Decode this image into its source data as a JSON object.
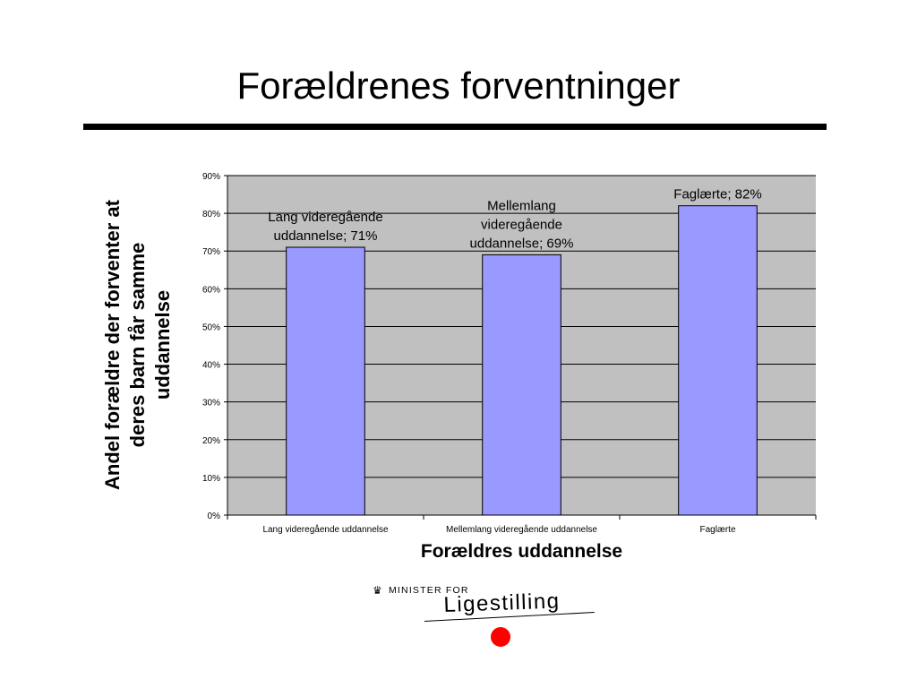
{
  "slide": {
    "title": "Forældrenes forventninger"
  },
  "chart_data": {
    "type": "bar",
    "categories": [
      "Lang videregående uddannelse",
      "Mellemlang videregående uddannelse",
      "Faglærte"
    ],
    "values": [
      71,
      69,
      82
    ],
    "data_labels": [
      [
        "Lang videregående",
        "uddannelse; 71%"
      ],
      [
        "Mellemlang",
        "videregående",
        "uddannelse; 69%"
      ],
      [
        "Faglærte; 82%"
      ]
    ],
    "ylabel_lines": [
      "Andel forældre der forventer at",
      "deres barn får samme",
      "uddannelse"
    ],
    "xlabel": "Forældres uddannelse",
    "ylim": [
      0,
      90
    ],
    "yticks": [
      0,
      10,
      20,
      30,
      40,
      50,
      60,
      70,
      80,
      90
    ],
    "ytick_suffix": "%",
    "grid": true,
    "colors": {
      "bar": "#9999ff",
      "plot_bg": "#c0c0c0",
      "grid": "#000000"
    }
  },
  "logo": {
    "top_text": "MINISTER FOR",
    "main_text": "Ligestilling",
    "icon": "crown-icon",
    "dot_color": "#ff0000"
  }
}
